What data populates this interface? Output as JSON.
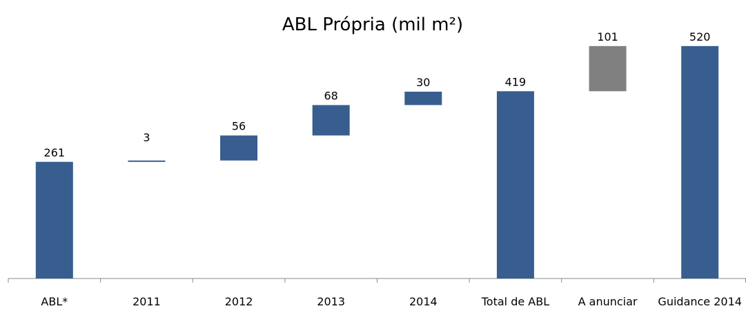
{
  "chart_data": {
    "type": "waterfall",
    "title": "ABL Própria (mil m²)",
    "categories": [
      "ABL*",
      "2011",
      "2012",
      "2013",
      "2014",
      "Total de ABL",
      "A anunciar",
      "Guidance 2014"
    ],
    "values": [
      261,
      3,
      56,
      68,
      30,
      419,
      101,
      520
    ],
    "measure": [
      "total",
      "relative",
      "relative",
      "relative",
      "relative",
      "total",
      "relative",
      "total"
    ],
    "colors": [
      "#375e8f",
      "#375e8f",
      "#375e8f",
      "#375e8f",
      "#375e8f",
      "#375e8f",
      "#808080",
      "#375e8f"
    ],
    "ylim": [
      0,
      566
    ]
  }
}
